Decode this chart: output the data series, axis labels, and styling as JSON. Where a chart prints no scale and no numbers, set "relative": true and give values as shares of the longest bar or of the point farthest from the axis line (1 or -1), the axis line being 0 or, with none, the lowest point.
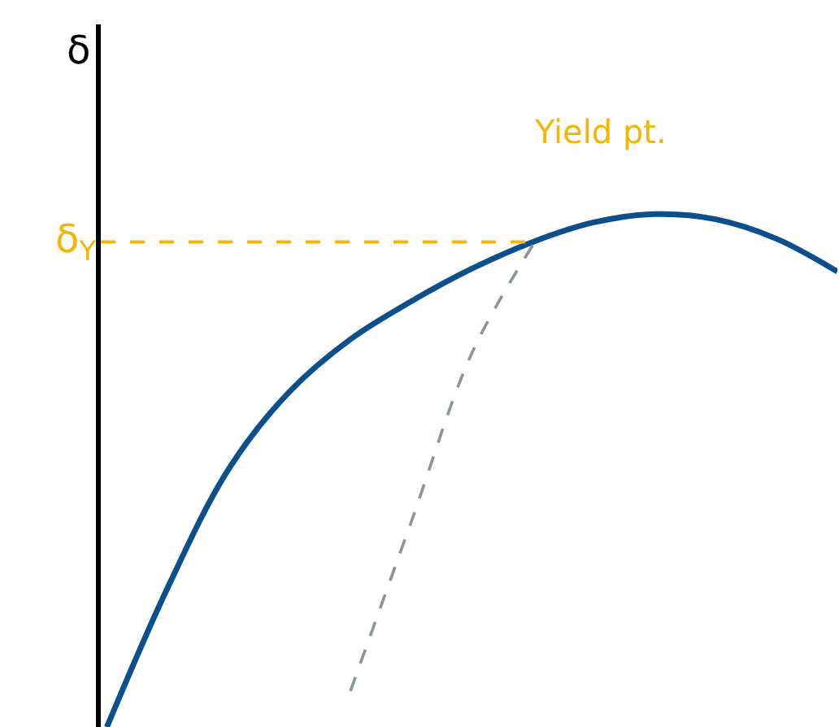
{
  "chart_data": {
    "type": "line",
    "relative": true,
    "ylabel": "δ",
    "categories": [
      null,
      null,
      null,
      null,
      null,
      null,
      null,
      null,
      null,
      null,
      null,
      null,
      null
    ],
    "series": [
      {
        "color": "#0b4f8c",
        "values": [
          0,
          0.272,
          0.503,
          0.654,
          0.756,
          0.83,
          0.894,
          0.946,
          0.984,
          1,
          0.99,
          0.952,
          0.888
        ]
      },
      {
        "color": "#8a9499",
        "line_style": "dashed",
        "values": [
          null,
          null,
          null,
          null,
          0.07,
          0.4,
          0.73,
          0.94,
          null,
          null,
          null,
          null,
          null
        ]
      }
    ],
    "ref_lines": [
      {
        "axis": "y",
        "value": 0.946,
        "label": "δ$_{Y}$",
        "color": "#f2b705",
        "line_style": "dashed"
      }
    ],
    "annotations": [
      "Yield pt."
    ],
    "legend": false,
    "marker": "none",
    "line_style": "solid"
  }
}
